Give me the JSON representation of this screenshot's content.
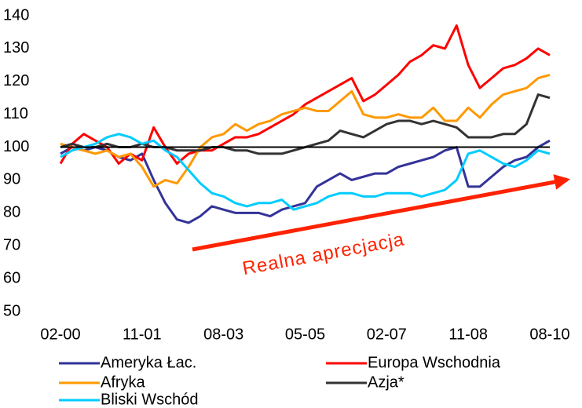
{
  "chart_data": {
    "type": "line",
    "categories": [
      "02-00",
      null,
      null,
      null,
      null,
      null,
      null,
      "11-01",
      null,
      null,
      null,
      null,
      null,
      null,
      "08-03",
      null,
      null,
      null,
      null,
      null,
      null,
      "05-05",
      null,
      null,
      null,
      null,
      null,
      null,
      "02-07",
      null,
      null,
      null,
      null,
      null,
      null,
      "11-08",
      null,
      null,
      null,
      null,
      null,
      null,
      "08-10"
    ],
    "series": [
      {
        "name": "Ameryka Łac.",
        "color": "#333399",
        "values": [
          98,
          100,
          99,
          100,
          99,
          97,
          96,
          98,
          90,
          83,
          78,
          77,
          79,
          82,
          81,
          80,
          80,
          80,
          79,
          81,
          82,
          83,
          88,
          90,
          92,
          90,
          91,
          92,
          92,
          94,
          95,
          96,
          97,
          99,
          100,
          88,
          88,
          91,
          94,
          96,
          97,
          100,
          102
        ]
      },
      {
        "name": "Europa Wschodnia",
        "color": "#ff0000",
        "values": [
          95,
          101,
          104,
          102,
          100,
          95,
          98,
          96,
          106,
          100,
          95,
          98,
          99,
          99,
          101,
          103,
          103,
          104,
          106,
          108,
          110,
          113,
          115,
          117,
          119,
          121,
          114,
          116,
          119,
          122,
          126,
          128,
          131,
          130,
          137,
          125,
          118,
          121,
          124,
          125,
          127,
          130,
          128
        ]
      },
      {
        "name": "Afryka",
        "color": "#ff9900",
        "values": [
          101,
          100,
          99,
          98,
          99,
          97,
          98,
          94,
          88,
          90,
          89,
          94,
          100,
          103,
          104,
          107,
          105,
          107,
          108,
          110,
          111,
          112,
          111,
          111,
          114,
          117,
          110,
          109,
          109,
          110,
          109,
          109,
          112,
          108,
          108,
          112,
          109,
          113,
          116,
          117,
          118,
          121,
          122
        ]
      },
      {
        "name": "Azja*",
        "color": "#333333",
        "values": [
          100,
          101,
          100,
          100,
          101,
          100,
          100,
          101,
          100,
          100,
          99,
          99,
          99,
          100,
          100,
          99,
          99,
          98,
          98,
          98,
          99,
          100,
          101,
          102,
          105,
          104,
          103,
          105,
          107,
          108,
          108,
          107,
          108,
          107,
          106,
          103,
          103,
          103,
          104,
          104,
          107,
          116,
          115
        ]
      },
      {
        "name": "Bliski Wschód",
        "color": "#00ccff",
        "values": [
          97,
          99,
          100,
          101,
          103,
          104,
          103,
          101,
          102,
          99,
          97,
          93,
          89,
          86,
          85,
          83,
          82,
          83,
          83,
          84,
          81,
          82,
          83,
          85,
          86,
          86,
          85,
          85,
          86,
          86,
          86,
          85,
          86,
          87,
          90,
          98,
          99,
          97,
          95,
          94,
          96,
          99,
          98
        ]
      }
    ],
    "ylim": [
      50,
      140
    ],
    "yticks": [
      50,
      60,
      70,
      80,
      90,
      100,
      110,
      120,
      130,
      140
    ],
    "reference_line": 100,
    "reference_color": "#000000",
    "annotation": "Realna aprecjacja",
    "annotation_color": "#ff2200"
  }
}
